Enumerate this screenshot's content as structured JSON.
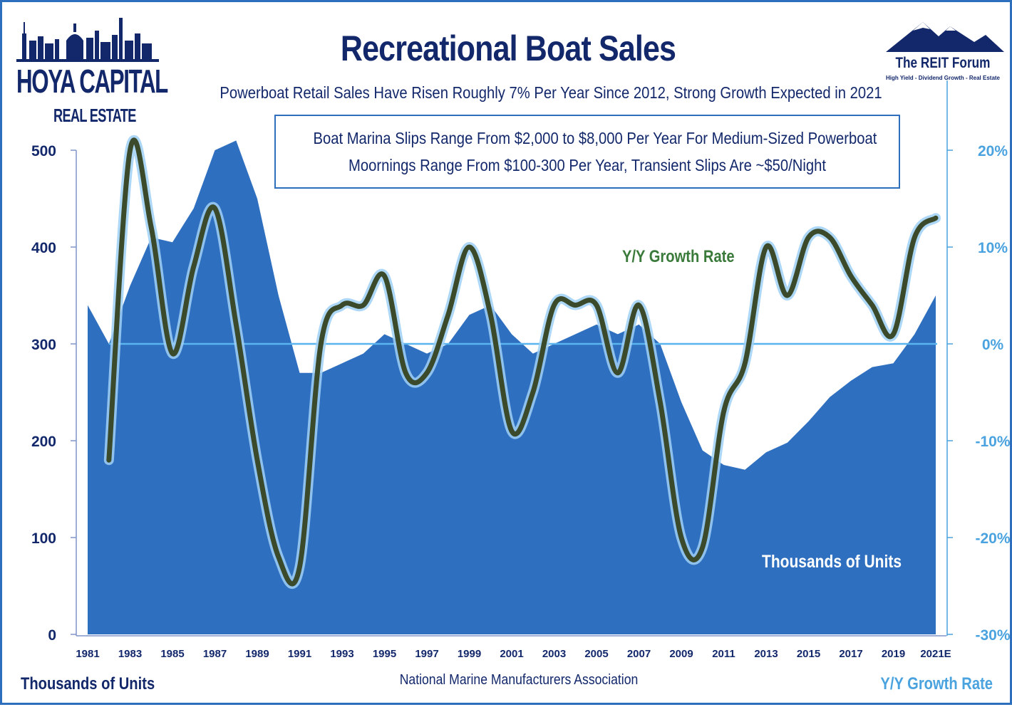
{
  "header": {
    "title": "Recreational Boat Sales",
    "subtitle": "Powerboat Retail Sales Have Risen Roughly 7% Per Year Since 2012, Strong Growth Expected in 2021",
    "note_line_1": "Boat Marina Slips Range From $2,000 to $8,000 Per Year For Medium-Sized Powerboat",
    "note_line_2": "Moornings Range From $100-300 Per Year, Transient Slips Are ~$50/Night"
  },
  "logos": {
    "left_name": "HOYA CAPITAL",
    "left_sub": "REAL ESTATE",
    "right_name": "The REIT Forum",
    "right_tagline": "High Yield - Dividend Growth - Real Estate"
  },
  "footer": {
    "left_axis_title": "Thousands of Units",
    "source": "National Marine Manufacturers Association",
    "right_axis_title": "Y/Y Growth Rate"
  },
  "colors": {
    "area": "#2f6fbf",
    "growth_line": "#3a4a2a",
    "growth_glow": "#9fd0f5",
    "zero_line": "#5ab4ee",
    "navy": "#13286b",
    "light_blue": "#4aa3df"
  },
  "chart_data": {
    "type": "area",
    "x": [
      1981,
      1982,
      1983,
      1984,
      1985,
      1986,
      1987,
      1988,
      1989,
      1990,
      1991,
      1992,
      1993,
      1994,
      1995,
      1996,
      1997,
      1998,
      1999,
      2000,
      2001,
      2002,
      2003,
      2004,
      2005,
      2006,
      2007,
      2008,
      2009,
      2010,
      2011,
      2012,
      2013,
      2014,
      2015,
      2016,
      2017,
      2018,
      2019,
      2020,
      "2021E"
    ],
    "x_tick_labels": [
      "1981",
      "1983",
      "1985",
      "1987",
      "1989",
      "1991",
      "1993",
      "1995",
      "1997",
      "1999",
      "2001",
      "2003",
      "2005",
      "2007",
      "2009",
      "2011",
      "2013",
      "2015",
      "2017",
      "2019",
      "2021E"
    ],
    "series": [
      {
        "name": "Thousands of Units",
        "type": "area",
        "axis": "left",
        "values": [
          340,
          300,
          360,
          410,
          405,
          440,
          500,
          510,
          450,
          350,
          270,
          270,
          280,
          290,
          310,
          300,
          290,
          300,
          330,
          340,
          310,
          290,
          300,
          310,
          320,
          310,
          320,
          300,
          240,
          190,
          175,
          170,
          188,
          198,
          220,
          245,
          262,
          276,
          280,
          310,
          350
        ]
      },
      {
        "name": "Y/Y Growth Rate",
        "type": "line",
        "axis": "right",
        "values": [
          null,
          -12,
          20,
          12,
          -1,
          8,
          14,
          2,
          -12,
          -22,
          -23,
          0,
          4,
          4,
          7,
          -3,
          -3,
          3,
          10,
          3,
          -9,
          -5,
          4,
          4,
          4,
          -3,
          4,
          -6,
          -20,
          -21,
          -7,
          -2,
          10,
          5,
          11,
          11,
          7,
          4,
          1,
          11,
          13
        ]
      }
    ],
    "y_left": {
      "label": "Thousands of Units",
      "range": [
        0,
        500
      ],
      "ticks": [
        "0",
        "100",
        "200",
        "300",
        "400",
        "500"
      ],
      "tick_values": [
        0,
        100,
        200,
        300,
        400,
        500
      ]
    },
    "y_right": {
      "label": "Y/Y Growth Rate",
      "range": [
        -30,
        20
      ],
      "ticks": [
        "-30%",
        "-20%",
        "-10%",
        "0%",
        "10%",
        "20%"
      ],
      "tick_values": [
        -30,
        -20,
        -10,
        0,
        10,
        20
      ]
    },
    "annotations": [
      "Y/Y Growth Rate",
      "Thousands of Units"
    ],
    "grid": false,
    "zero_reference_line": true
  }
}
